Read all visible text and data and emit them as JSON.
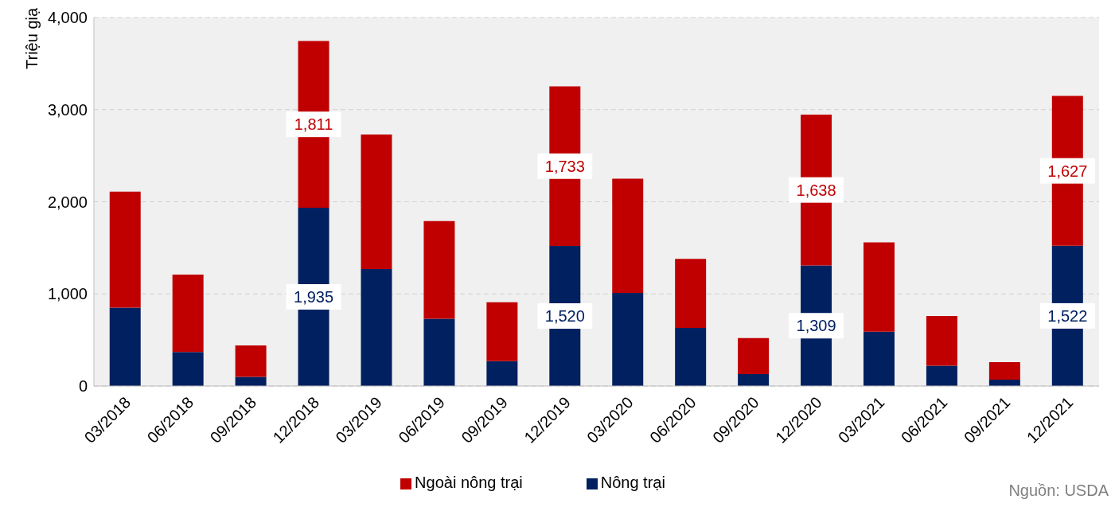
{
  "chart_data": {
    "type": "bar",
    "stacked": true,
    "ylabel": "Triệu giạ",
    "categories": [
      "03/2018",
      "06/2018",
      "09/2018",
      "12/2018",
      "03/2019",
      "06/2019",
      "09/2019",
      "12/2019",
      "03/2020",
      "06/2020",
      "09/2020",
      "12/2020",
      "03/2021",
      "06/2021",
      "09/2021",
      "12/2021"
    ],
    "series": [
      {
        "name": "Nông trại",
        "color": "#002060",
        "values": [
          850,
          370,
          100,
          1935,
          1270,
          730,
          270,
          1520,
          1010,
          630,
          130,
          1309,
          590,
          220,
          70,
          1522
        ],
        "value_labels": [
          null,
          null,
          null,
          "1,935",
          null,
          null,
          null,
          "1,520",
          null,
          null,
          null,
          "1,309",
          null,
          null,
          null,
          "1,522"
        ]
      },
      {
        "name": "Ngoài nông trại",
        "color": "#c00000",
        "values": [
          1260,
          840,
          340,
          1811,
          1460,
          1060,
          640,
          1733,
          1240,
          750,
          390,
          1638,
          970,
          540,
          190,
          1627
        ],
        "value_labels": [
          null,
          null,
          null,
          "1,811",
          null,
          null,
          null,
          "1,733",
          null,
          null,
          null,
          "1,638",
          null,
          null,
          null,
          "1,627"
        ]
      }
    ],
    "ylim": [
      0,
      4000
    ],
    "yticks": [
      {
        "value": 0,
        "label": "0"
      },
      {
        "value": 1000,
        "label": "1,000"
      },
      {
        "value": 2000,
        "label": "2,000"
      },
      {
        "value": 3000,
        "label": "3,000"
      },
      {
        "value": 4000,
        "label": "4,000"
      }
    ],
    "grid": "y",
    "legend": "bottom",
    "annotations": [
      "Nguồn: USDA"
    ]
  }
}
